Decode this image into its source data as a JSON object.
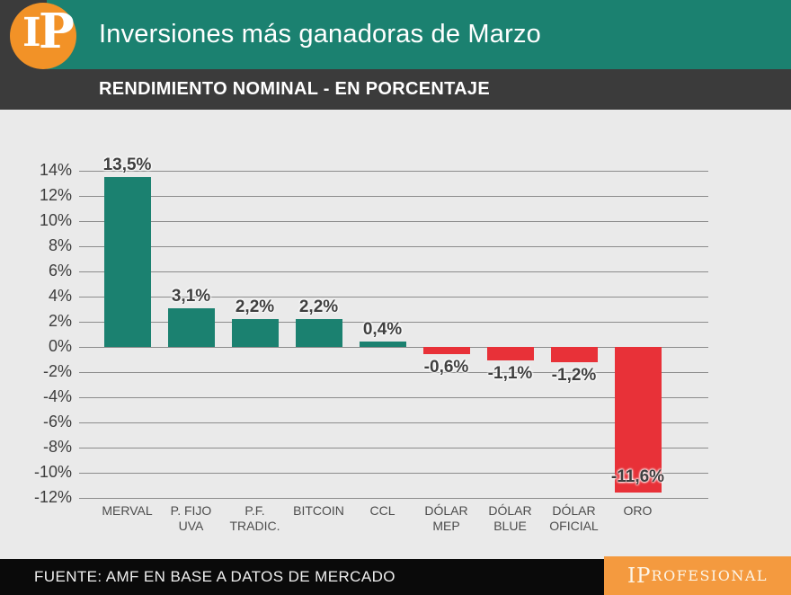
{
  "header": {
    "logo_i": "I",
    "logo_p": "P",
    "title": "Inversiones más ganadoras de Marzo",
    "subtitle": "RENDIMIENTO NOMINAL - EN PORCENTAJE"
  },
  "footer": {
    "source": "FUENTE: AMF EN BASE A DATOS DE MERCADO",
    "brand_large": "IP",
    "brand_rest": "ROFESIONAL"
  },
  "colors": {
    "teal": "#1b8170",
    "red": "#e83138",
    "dark": "#3b3b3b",
    "chart_bg": "#eaeaea",
    "grid": "#8c8c8c",
    "logo_orange": "#f29227",
    "brand_orange": "#f49a3f",
    "footer_black": "#0a0a0a"
  },
  "chart_data": {
    "type": "bar",
    "title": "RENDIMIENTO NOMINAL - EN PORCENTAJE",
    "xlabel": "",
    "ylabel": "",
    "categories": [
      "MERVAL",
      "P. FIJO UVA",
      "P.F. TRADIC.",
      "BITCOIN",
      "CCL",
      "DÓLAR MEP",
      "DÓLAR BLUE",
      "DÓLAR OFICIAL",
      "ORO"
    ],
    "categories_lines": [
      [
        "MERVAL"
      ],
      [
        "P. FIJO",
        "UVA"
      ],
      [
        "P.F.",
        "TRADIC."
      ],
      [
        "BITCOIN"
      ],
      [
        "CCL"
      ],
      [
        "DÓLAR",
        "MEP"
      ],
      [
        "DÓLAR",
        "BLUE"
      ],
      [
        "DÓLAR",
        "OFICIAL"
      ],
      [
        "ORO"
      ]
    ],
    "values": [
      13.5,
      3.1,
      2.2,
      2.2,
      0.4,
      -0.6,
      -1.1,
      -1.2,
      -11.6
    ],
    "value_labels": [
      "13,5%",
      "3,1%",
      "2,2%",
      "2,2%",
      "0,4%",
      "-0,6%",
      "-1,1%",
      "-1,2%",
      "-11,6%"
    ],
    "ylim": [
      -12,
      14
    ],
    "ytick_step": 2,
    "ytick_labels": [
      "14%",
      "12%",
      "10%",
      "8%",
      "6%",
      "4%",
      "2%",
      "0%",
      "-2%",
      "-4%",
      "-6%",
      "-8%",
      "-10%",
      "-12%"
    ],
    "grid": true,
    "legend": false,
    "positive_color": "#1b8170",
    "negative_color": "#e83138"
  }
}
